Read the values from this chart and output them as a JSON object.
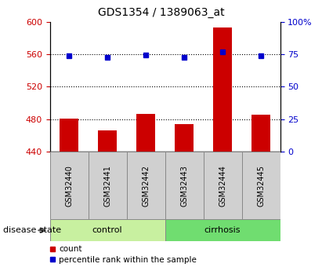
{
  "title": "GDS1354 / 1389063_at",
  "samples": [
    "GSM32440",
    "GSM32441",
    "GSM32442",
    "GSM32443",
    "GSM32444",
    "GSM32445"
  ],
  "groups": [
    {
      "label": "control",
      "indices": [
        0,
        1,
        2
      ],
      "color": "#c8f0a0"
    },
    {
      "label": "cirrhosis",
      "indices": [
        3,
        4,
        5
      ],
      "color": "#70dd70"
    }
  ],
  "bar_base": 440,
  "bar_values": [
    481,
    466,
    487,
    474,
    593,
    486
  ],
  "bar_color": "#cc0000",
  "dot_values": [
    558,
    556,
    559,
    556,
    563,
    558
  ],
  "dot_color": "#0000cc",
  "left_ylim": [
    440,
    600
  ],
  "left_yticks": [
    440,
    480,
    520,
    560,
    600
  ],
  "right_ylim": [
    0,
    100
  ],
  "right_yticks": [
    0,
    25,
    50,
    75,
    100
  ],
  "right_yticklabels": [
    "0",
    "25",
    "50",
    "75",
    "100%"
  ],
  "hline_values": [
    480,
    520,
    560
  ],
  "ylabel_left_color": "#cc0000",
  "ylabel_right_color": "#0000cc",
  "sample_box_color": "#d0d0d0",
  "legend_items": [
    {
      "label": "count",
      "color": "#cc0000",
      "marker": "s"
    },
    {
      "label": "percentile rank within the sample",
      "color": "#0000cc",
      "marker": "s"
    }
  ],
  "disease_state_label": "disease state",
  "figsize": [
    4.11,
    3.45
  ],
  "dpi": 100
}
